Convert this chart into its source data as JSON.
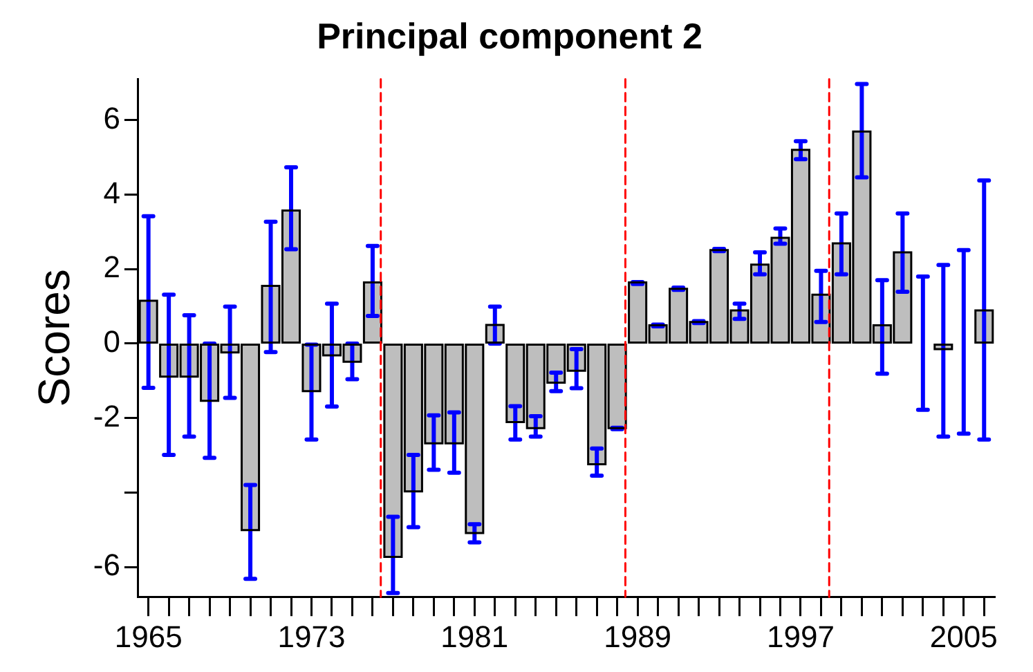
{
  "chart_data": {
    "type": "bar",
    "title": "Principal component 2",
    "ylabel": "Scores",
    "x": [
      1965,
      1966,
      1967,
      1968,
      1969,
      1970,
      1971,
      1972,
      1973,
      1974,
      1975,
      1976,
      1977,
      1978,
      1979,
      1980,
      1981,
      1982,
      1983,
      1984,
      1985,
      1986,
      1987,
      1988,
      1989,
      1990,
      1991,
      1992,
      1993,
      1994,
      1995,
      1996,
      1997,
      1998,
      1999,
      2000,
      2001,
      2002,
      2003,
      2004,
      2005,
      2006
    ],
    "values": [
      1.15,
      -0.89,
      -0.89,
      -1.54,
      -0.24,
      -5.01,
      1.55,
      3.57,
      -1.28,
      -0.32,
      -0.49,
      1.64,
      -5.73,
      -3.97,
      -2.68,
      -2.68,
      -5.09,
      0.5,
      -2.11,
      -2.27,
      -1.05,
      -0.73,
      -3.24,
      -2.27,
      1.64,
      0.49,
      1.47,
      0.58,
      2.51,
      0.89,
      2.12,
      2.84,
      5.2,
      1.31,
      2.69,
      5.69,
      0.49,
      2.45,
      0,
      -0.15,
      0,
      0.89
    ],
    "errors": [
      [
        -1.19,
        3.42
      ],
      [
        -2.99,
        1.31
      ],
      [
        -2.5,
        0.76
      ],
      [
        -3.07,
        0
      ],
      [
        -1.46,
        0.99
      ],
      [
        -6.32,
        -3.8
      ],
      [
        -0.23,
        3.27
      ],
      [
        2.53,
        4.73
      ],
      [
        -2.58,
        -0.03
      ],
      [
        -1.69,
        1.07
      ],
      [
        -0.96,
        0
      ],
      [
        0.74,
        2.62
      ],
      [
        -6.7,
        -4.65
      ],
      [
        -4.93,
        -2.99
      ],
      [
        -3.39,
        -1.93
      ],
      [
        -3.47,
        -1.85
      ],
      [
        -5.34,
        -4.85
      ],
      [
        0,
        0.99
      ],
      [
        -2.58,
        -1.68
      ],
      [
        -2.5,
        -1.95
      ],
      [
        -1.28,
        -0.78
      ],
      [
        -1.2,
        -0.15
      ],
      [
        -3.55,
        -2.82
      ],
      [
        -2.3,
        -2.26
      ],
      [
        1.6,
        1.65
      ],
      [
        0.46,
        0.51
      ],
      [
        1.44,
        1.5
      ],
      [
        0.55,
        0.6
      ],
      [
        2.48,
        2.54
      ],
      [
        0.66,
        1.07
      ],
      [
        1.86,
        2.45
      ],
      [
        2.68,
        3.09
      ],
      [
        4.95,
        5.43
      ],
      [
        0.58,
        1.95
      ],
      [
        1.86,
        3.49
      ],
      [
        4.46,
        6.97
      ],
      [
        -0.81,
        1.7
      ],
      [
        1.39,
        3.49
      ],
      [
        -1.78,
        1.8
      ],
      [
        -2.5,
        2.11
      ],
      [
        -2.42,
        2.51
      ],
      [
        -2.58,
        4.38
      ]
    ],
    "color": "#bebebe",
    "xlim": [
      1964.5,
      2006.5
    ],
    "xticks": [
      1965,
      {
        "value": 1966,
        "label": null
      },
      {
        "value": 1967,
        "label": null
      },
      {
        "value": 1968,
        "label": null
      },
      {
        "value": 1969,
        "label": null
      },
      {
        "value": 1970,
        "label": null
      },
      {
        "value": 1971,
        "label": null
      },
      {
        "value": 1972,
        "label": null
      },
      1973,
      {
        "value": 1974,
        "label": null
      },
      {
        "value": 1975,
        "label": null
      },
      {
        "value": 1976,
        "label": null
      },
      {
        "value": 1977,
        "label": null
      },
      {
        "value": 1978,
        "label": null
      },
      {
        "value": 1979,
        "label": null
      },
      {
        "value": 1980,
        "label": null
      },
      1981,
      {
        "value": 1982,
        "label": null
      },
      {
        "value": 1983,
        "label": null
      },
      {
        "value": 1984,
        "label": null
      },
      {
        "value": 1985,
        "label": null
      },
      {
        "value": 1986,
        "label": null
      },
      {
        "value": 1987,
        "label": null
      },
      {
        "value": 1988,
        "label": null
      },
      1989,
      {
        "value": 1990,
        "label": null
      },
      {
        "value": 1991,
        "label": null
      },
      {
        "value": 1992,
        "label": null
      },
      {
        "value": 1993,
        "label": null
      },
      {
        "value": 1994,
        "label": null
      },
      {
        "value": 1995,
        "label": null
      },
      {
        "value": 1996,
        "label": null
      },
      1997,
      {
        "value": 1998,
        "label": null
      },
      {
        "value": 1999,
        "label": null
      },
      {
        "value": 2000,
        "label": null
      },
      {
        "value": 2001,
        "label": null
      },
      {
        "value": 2002,
        "label": null
      },
      {
        "value": 2003,
        "label": null
      },
      {
        "value": 2004,
        "label": null
      },
      2005,
      {
        "value": 2006,
        "label": null
      }
    ],
    "ylim": [
      -6.8,
      7.1
    ],
    "yticks": [
      -6,
      {
        "value": -4,
        "label": null
      },
      -2,
      0,
      2,
      4,
      6
    ],
    "ref_lines": [
      {
        "axis": "x",
        "value": 1976.4,
        "color": "#ff0000",
        "line_style": "dashed"
      },
      {
        "axis": "x",
        "value": 1988.4,
        "color": "#ff0000",
        "line_style": "dashed"
      },
      {
        "axis": "x",
        "value": 1998.4,
        "color": "#ff0000",
        "line_style": "dashed"
      }
    ],
    "grid": false,
    "legend": false
  }
}
